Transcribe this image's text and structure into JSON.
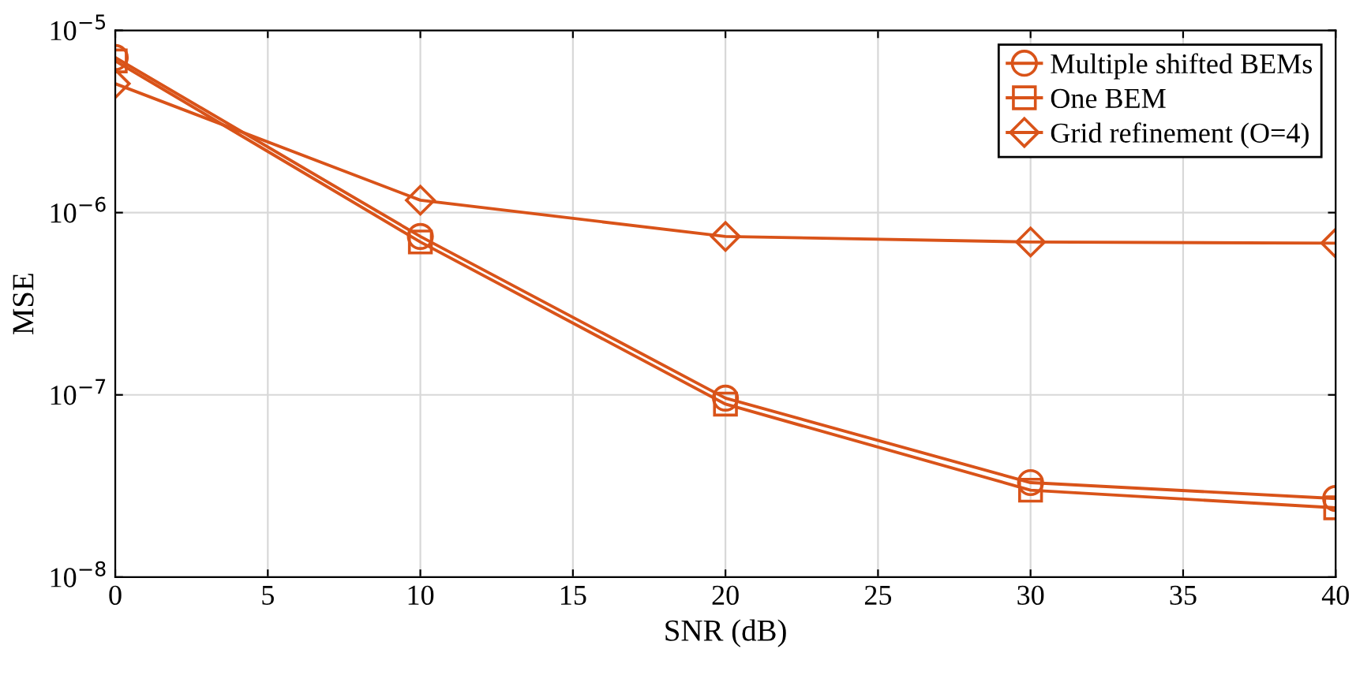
{
  "chart_data": {
    "type": "line",
    "xlabel": "SNR (dB)",
    "ylabel": "MSE",
    "x": [
      0,
      10,
      20,
      30,
      40
    ],
    "series": [
      {
        "name": "Multiple shifted BEMs",
        "color": "#d95319",
        "marker": "circle",
        "values": [
          7.1e-06,
          7.4e-07,
          9.6e-08,
          3.3e-08,
          2.7e-08
        ]
      },
      {
        "name": "One BEM",
        "color": "#d95319",
        "marker": "square",
        "values": [
          6.8e-06,
          6.9e-07,
          8.9e-08,
          3e-08,
          2.4e-08
        ]
      },
      {
        "name": "Grid refinement (O=4)",
        "color": "#d95319",
        "marker": "diamond",
        "values": [
          5.1e-06,
          1.17e-06,
          7.4e-07,
          6.9e-07,
          6.8e-07
        ]
      }
    ],
    "log": "y",
    "xlim": [
      0,
      40
    ],
    "xticks": [
      0,
      5,
      10,
      15,
      20,
      25,
      30,
      35,
      40
    ],
    "ylim": [
      1e-08,
      1e-05
    ],
    "yticks": [
      {
        "value": 1e-08,
        "label": "10$^{−8}$"
      },
      {
        "value": 1e-07,
        "label": "10$^{−7}$"
      },
      {
        "value": 1e-06,
        "label": "10$^{−6}$"
      },
      {
        "value": 1e-05,
        "label": "10$^{−5}$"
      }
    ],
    "grid": true,
    "legend": "top right",
    "line_style": "solid"
  }
}
